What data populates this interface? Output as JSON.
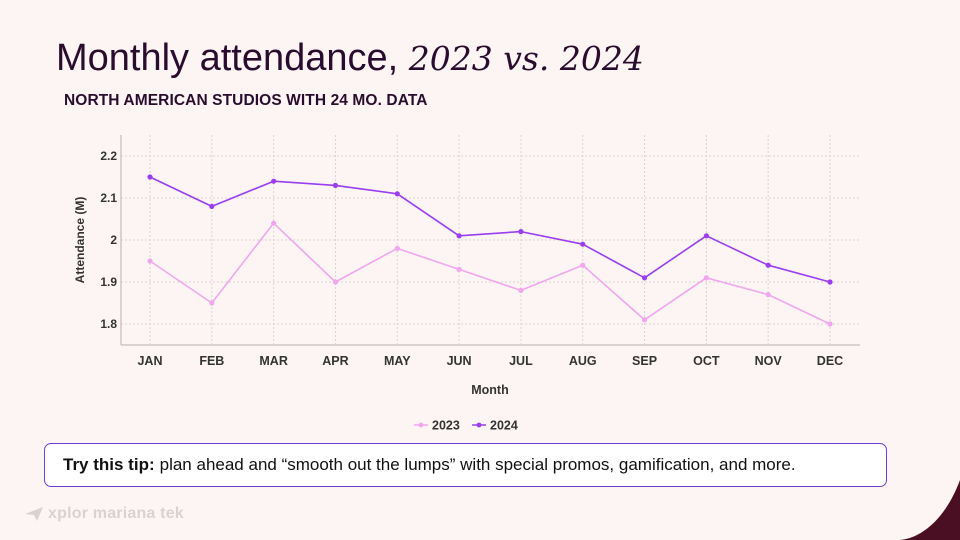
{
  "slide": {
    "title_main": "Monthly attendance,",
    "title_italic": "2023 vs. 2024",
    "subtitle": "NORTH AMERICAN STUDIOS WITH 24 MO. DATA",
    "tip_label": "Try this tip:",
    "tip_text": "plan ahead and “smooth out the lumps” with special promos, gamification, and more.",
    "logo_text": "xplor mariana tek"
  },
  "colors": {
    "background": "#fcf5f3",
    "title": "#2a0d2e",
    "accent_border": "#6b3fd6",
    "corner": "#4a0f22"
  },
  "chart_data": {
    "type": "line",
    "categories": [
      "JAN",
      "FEB",
      "MAR",
      "APR",
      "MAY",
      "JUN",
      "JUL",
      "AUG",
      "SEP",
      "OCT",
      "NOV",
      "DEC"
    ],
    "series": [
      {
        "name": "2023",
        "color": "#f2a6ee",
        "values": [
          1.95,
          1.85,
          2.04,
          1.9,
          1.98,
          1.93,
          1.88,
          1.94,
          1.81,
          1.91,
          1.87,
          1.8
        ]
      },
      {
        "name": "2024",
        "color": "#9b3df0",
        "values": [
          2.15,
          2.08,
          2.14,
          2.13,
          2.11,
          2.01,
          2.02,
          1.99,
          1.91,
          2.01,
          1.94,
          1.9
        ]
      }
    ],
    "xlabel": "Month",
    "ylabel": "Attendance (M)",
    "ylim": [
      1.75,
      2.25
    ],
    "yticks": [
      1.8,
      1.9,
      2,
      2.1,
      2.2
    ],
    "ytick_labels": [
      "1.8",
      "1.9",
      "2",
      "2.1",
      "2.2"
    ],
    "grid": true,
    "legend_position": "bottom-center"
  }
}
